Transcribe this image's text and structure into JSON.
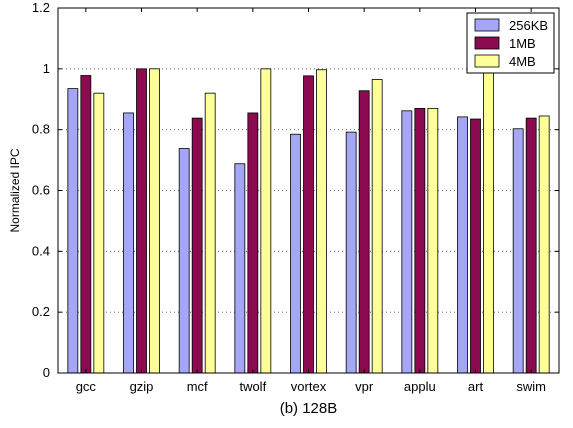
{
  "chart_data": {
    "type": "bar",
    "title": "",
    "caption": "(b) 128B",
    "xlabel": "",
    "ylabel": "Normalized IPC",
    "ylim": [
      0,
      1.2
    ],
    "yticks": [
      0,
      0.2,
      0.4,
      0.6,
      0.8,
      1,
      1.2
    ],
    "ytick_labels": [
      "0",
      "0.2",
      "0.4",
      "0.6",
      "0.8",
      "1",
      "1.2"
    ],
    "grid": "dotted horizontal at major ticks",
    "legend_position": "top-right",
    "categories": [
      "gcc",
      "gzip",
      "mcf",
      "twolf",
      "vortex",
      "vpr",
      "applu",
      "art",
      "swim"
    ],
    "series": [
      {
        "name": "256KB",
        "color": "#a6a6f8",
        "values": [
          0.935,
          0.855,
          0.738,
          0.688,
          0.785,
          0.792,
          0.862,
          0.842,
          0.803
        ]
      },
      {
        "name": "1MB",
        "color": "#8c0a4f",
        "values": [
          0.978,
          1.0,
          0.838,
          0.855,
          0.977,
          0.928,
          0.87,
          0.835,
          0.838
        ]
      },
      {
        "name": "4MB",
        "color": "#ffff99",
        "values": [
          0.92,
          1.0,
          0.92,
          1.0,
          0.997,
          0.965,
          0.87,
          0.995,
          0.845
        ]
      }
    ]
  }
}
